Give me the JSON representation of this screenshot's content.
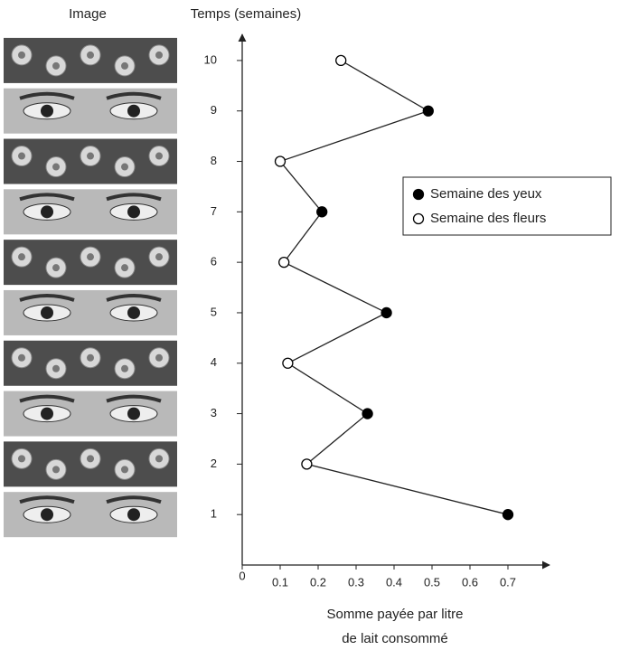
{
  "chart_data": {
    "type": "line",
    "image_header": "Image",
    "ylabel": "Temps (semaines)",
    "xlabel": [
      "Somme payée par litre",
      "de lait consommé"
    ],
    "y": [
      1,
      2,
      3,
      4,
      5,
      6,
      7,
      8,
      9,
      10
    ],
    "series": [
      {
        "name": "Semaine des yeux",
        "color": "#000000",
        "values": [
          0.7,
          null,
          0.33,
          null,
          0.38,
          null,
          0.21,
          null,
          0.49,
          null
        ]
      },
      {
        "name": "Semaine des fleurs",
        "color": "#ffffff",
        "values": [
          null,
          0.17,
          null,
          0.12,
          null,
          0.11,
          null,
          0.1,
          null,
          0.26
        ]
      }
    ],
    "xlim": [
      0,
      0.8
    ],
    "xticks": [
      0,
      0.1,
      0.2,
      0.3,
      0.4,
      0.5,
      0.6,
      0.7
    ],
    "ylim": [
      0,
      10.5
    ],
    "yticks": [
      1,
      2,
      3,
      4,
      5,
      6,
      7,
      8,
      9,
      10
    ],
    "legend": "right"
  }
}
